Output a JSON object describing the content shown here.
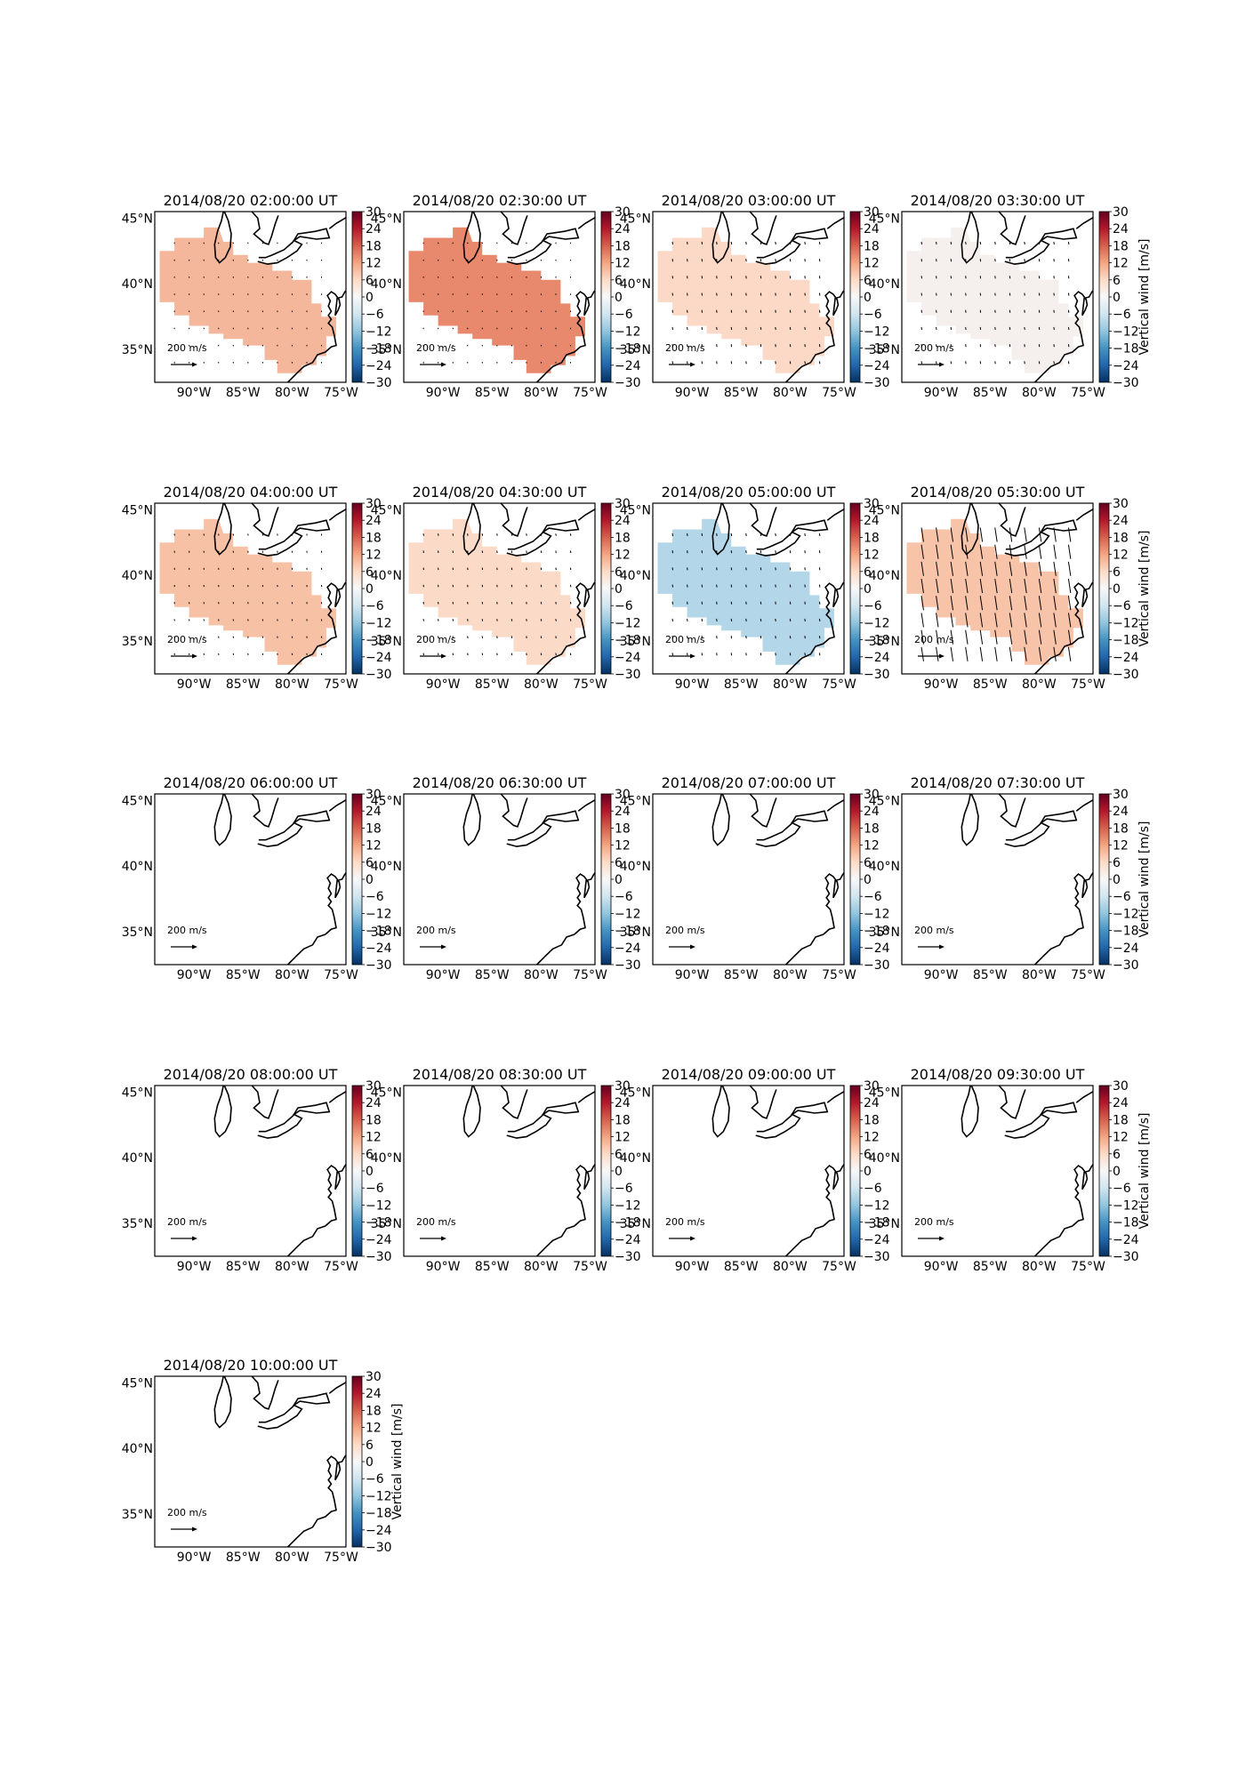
{
  "figure": {
    "colorbar_label": "Vertical wind [m/s]",
    "colorbar_ticks": [
      "30",
      "24",
      "18",
      "12",
      "6",
      "0",
      "−6",
      "−12",
      "−18",
      "−24",
      "−30"
    ],
    "x_tick_labels": [
      "90°W",
      "85°W",
      "80°W",
      "75°W"
    ],
    "y_tick_labels": [
      "45°N",
      "40°N",
      "35°N"
    ],
    "quiver_key_label": "200 m/s"
  },
  "chart_data": [
    {
      "type": "heatmap",
      "title": "2014/08/20 02:00:00 UT",
      "value": 10,
      "color": "#f4b79b",
      "has_data": true,
      "arrow_scale": 0.15
    },
    {
      "type": "heatmap",
      "title": "2014/08/20 02:30:00 UT",
      "value": 16,
      "color": "#e8896d",
      "has_data": true,
      "arrow_scale": 0.15
    },
    {
      "type": "heatmap",
      "title": "2014/08/20 03:00:00 UT",
      "value": 6,
      "color": "#fbd9c6",
      "has_data": true,
      "arrow_scale": 0.3
    },
    {
      "type": "heatmap",
      "title": "2014/08/20 03:30:00 UT",
      "value": 1,
      "color": "#f5f0ee",
      "has_data": true,
      "arrow_scale": 0.3
    },
    {
      "type": "heatmap",
      "title": "2014/08/20 04:00:00 UT",
      "value": 9,
      "color": "#f7c1a6",
      "has_data": true,
      "arrow_scale": 0.2
    },
    {
      "type": "heatmap",
      "title": "2014/08/20 04:30:00 UT",
      "value": 6,
      "color": "#fbdac8",
      "has_data": true,
      "arrow_scale": 0.25
    },
    {
      "type": "heatmap",
      "title": "2014/08/20 05:00:00 UT",
      "value": -9,
      "color": "#b3d6e8",
      "has_data": true,
      "arrow_scale": 0.3
    },
    {
      "type": "heatmap",
      "title": "2014/08/20 05:30:00 UT",
      "value": 8,
      "color": "#f8c4a9",
      "has_data": true,
      "arrow_scale": 1.6
    },
    {
      "type": "heatmap",
      "title": "2014/08/20 06:00:00 UT",
      "has_data": false
    },
    {
      "type": "heatmap",
      "title": "2014/08/20 06:30:00 UT",
      "has_data": false
    },
    {
      "type": "heatmap",
      "title": "2014/08/20 07:00:00 UT",
      "has_data": false
    },
    {
      "type": "heatmap",
      "title": "2014/08/20 07:30:00 UT",
      "has_data": false
    },
    {
      "type": "heatmap",
      "title": "2014/08/20 08:00:00 UT",
      "has_data": false
    },
    {
      "type": "heatmap",
      "title": "2014/08/20 08:30:00 UT",
      "has_data": false
    },
    {
      "type": "heatmap",
      "title": "2014/08/20 09:00:00 UT",
      "has_data": false
    },
    {
      "type": "heatmap",
      "title": "2014/08/20 09:30:00 UT",
      "has_data": false
    },
    {
      "type": "heatmap",
      "title": "2014/08/20 10:00:00 UT",
      "has_data": false
    }
  ]
}
